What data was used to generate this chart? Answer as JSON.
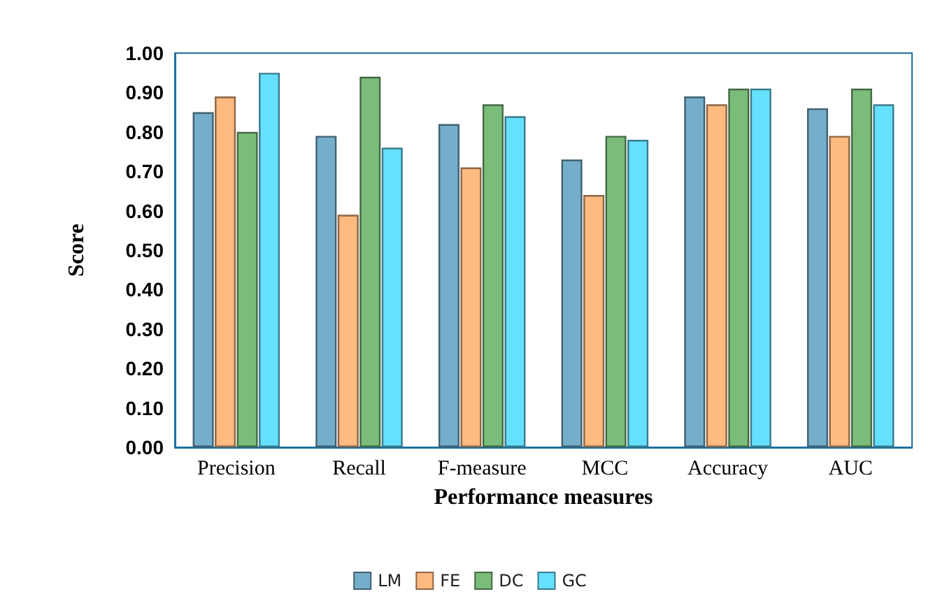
{
  "chart_data": {
    "type": "bar",
    "xlabel": "Performance measures",
    "ylabel": "Score",
    "categories": [
      "Precision",
      "Recall",
      "F-measure",
      "MCC",
      "Accuracy",
      "AUC"
    ],
    "series": [
      {
        "name": "LM",
        "color": "#74aecb",
        "values": [
          0.85,
          0.79,
          0.82,
          0.73,
          0.89,
          0.86
        ]
      },
      {
        "name": "FE",
        "color": "#ffba80",
        "values": [
          0.89,
          0.59,
          0.71,
          0.64,
          0.87,
          0.79
        ]
      },
      {
        "name": "DC",
        "color": "#7abd7a",
        "values": [
          0.8,
          0.94,
          0.87,
          0.79,
          0.91,
          0.91
        ]
      },
      {
        "name": "GC",
        "color": "#66e0ff",
        "values": [
          0.95,
          0.76,
          0.84,
          0.78,
          0.91,
          0.87
        ]
      }
    ],
    "ylim": [
      0,
      1
    ],
    "yticks": [
      {
        "value": 0,
        "label": "0.00"
      },
      {
        "value": 0.1,
        "label": "0.10"
      },
      {
        "value": 0.2,
        "label": "0.20"
      },
      {
        "value": 0.3,
        "label": "0.30"
      },
      {
        "value": 0.4,
        "label": "0.40"
      },
      {
        "value": 0.5,
        "label": "0.50"
      },
      {
        "value": 0.6,
        "label": "0.60"
      },
      {
        "value": 0.7,
        "label": "0.70"
      },
      {
        "value": 0.8,
        "label": "0.80"
      },
      {
        "value": 0.9,
        "label": "0.90"
      },
      {
        "value": 1,
        "label": "1.00"
      }
    ],
    "grid": false,
    "legend": "bottom"
  }
}
